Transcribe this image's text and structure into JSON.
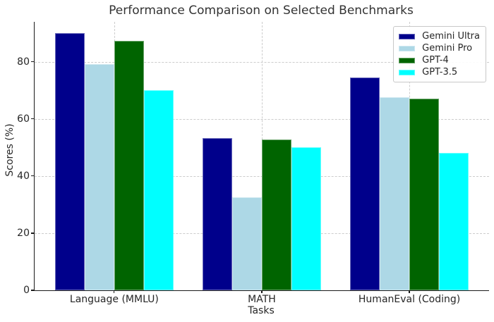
{
  "chart_data": {
    "type": "bar",
    "title": "Performance Comparison on Selected Benchmarks",
    "xlabel": "Tasks",
    "ylabel": "Scores (%)",
    "categories": [
      "Language (MMLU)",
      "MATH",
      "HumanEval (Coding)"
    ],
    "series": [
      {
        "name": "Gemini Ultra",
        "color": "#00008B",
        "values": [
          90.0,
          53.2,
          74.4
        ]
      },
      {
        "name": "Gemini Pro",
        "color": "#ADD8E6",
        "values": [
          79.1,
          32.6,
          67.7
        ]
      },
      {
        "name": "GPT-4",
        "color": "#006400",
        "values": [
          87.3,
          52.9,
          67.0
        ]
      },
      {
        "name": "GPT-3.5",
        "color": "#00FFFF",
        "values": [
          70.0,
          50.1,
          48.1
        ]
      }
    ],
    "ylim": [
      0,
      94
    ],
    "yticks": [
      0,
      20,
      40,
      60,
      80
    ],
    "xlim": [
      -0.54,
      2.54
    ],
    "bar_width_units": 0.2,
    "grid": true,
    "grid_style": "dashed",
    "legend_position": "upper right",
    "background_color": "#ffffff",
    "grid_color": "#cccccc",
    "spine_color": "#1a1a1a",
    "text_color": "#262626"
  }
}
